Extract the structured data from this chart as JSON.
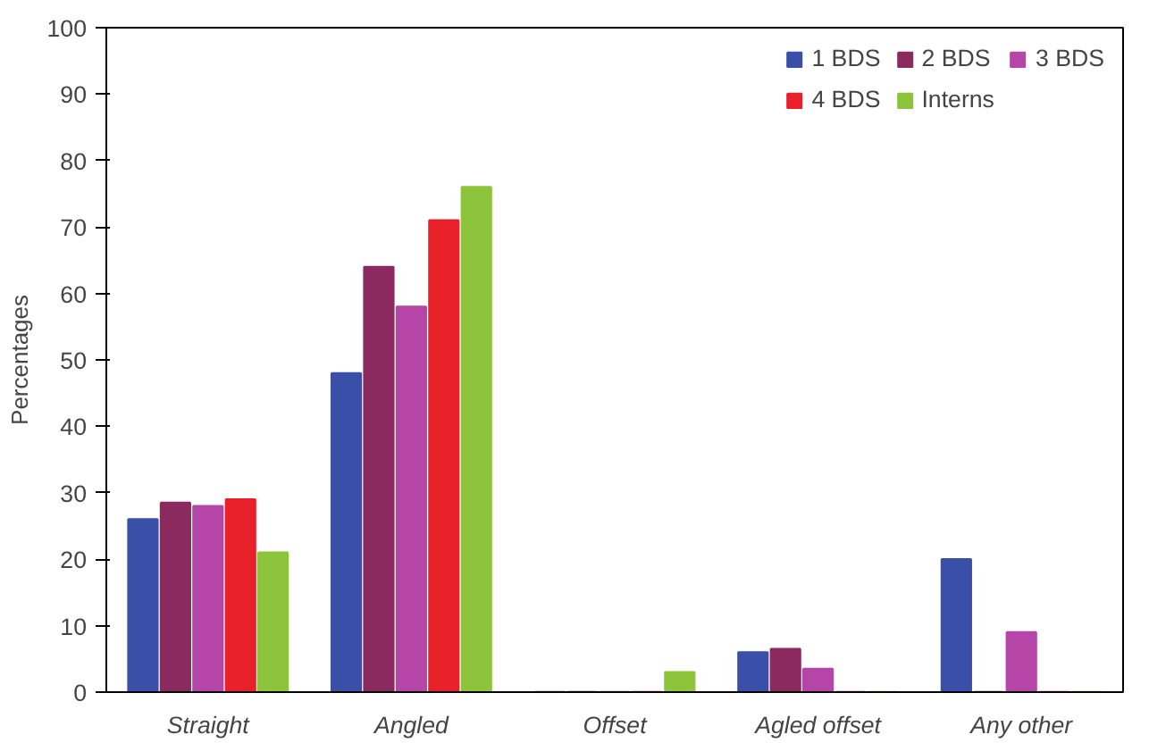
{
  "chart_data": {
    "type": "bar",
    "ylabel": "Percentages",
    "categories": [
      "Straight",
      "Angled",
      "Offset",
      "Agled offset",
      "Any other"
    ],
    "series": [
      {
        "name": "1 BDS",
        "color": "#3a4fa8",
        "values": [
          26,
          48,
          0,
          6,
          20
        ]
      },
      {
        "name": "2 BDS",
        "color": "#8b2a5f",
        "values": [
          28.5,
          64,
          0,
          6.5,
          0
        ]
      },
      {
        "name": "3 BDS",
        "color": "#b545a6",
        "values": [
          28,
          58,
          0,
          3.5,
          9
        ]
      },
      {
        "name": "4 BDS",
        "color": "#e8202a",
        "values": [
          29,
          71,
          0,
          0,
          0
        ]
      },
      {
        "name": "Interns",
        "color": "#8cc43c",
        "values": [
          21,
          76,
          3,
          0,
          0
        ]
      }
    ],
    "ylim": [
      0,
      100
    ],
    "yticks": [
      0,
      10,
      20,
      30,
      40,
      50,
      60,
      70,
      80,
      90,
      100
    ],
    "grid": false,
    "legend": "top right"
  }
}
